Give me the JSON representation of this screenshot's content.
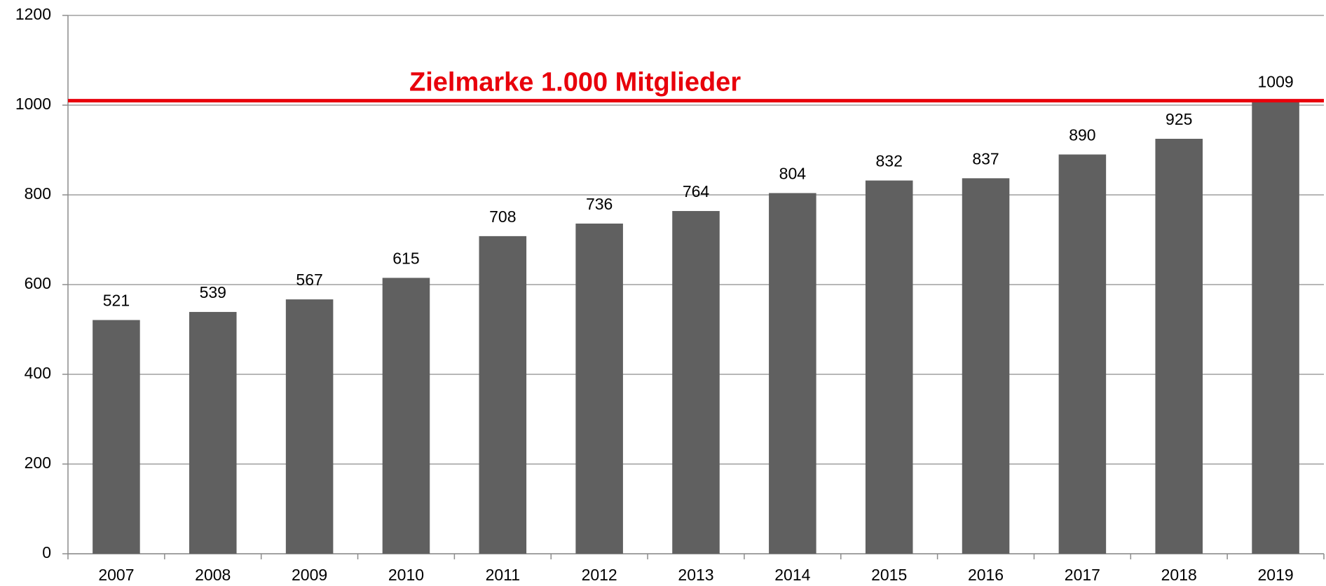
{
  "chart_data": {
    "type": "bar",
    "categories": [
      "2007",
      "2008",
      "2009",
      "2010",
      "2011",
      "2012",
      "2013",
      "2014",
      "2015",
      "2016",
      "2017",
      "2018",
      "2019"
    ],
    "values": [
      521,
      539,
      567,
      615,
      708,
      736,
      764,
      804,
      832,
      837,
      890,
      925,
      1009
    ],
    "color": "#606060",
    "ylim": [
      0,
      1200
    ],
    "yticks": [
      0,
      200,
      400,
      600,
      800,
      1000,
      1200
    ],
    "grid": true,
    "reference_line": {
      "value": 1010,
      "color": "#e8000b"
    },
    "annotation": "Zielmarke 1.000 Mitglieder"
  }
}
